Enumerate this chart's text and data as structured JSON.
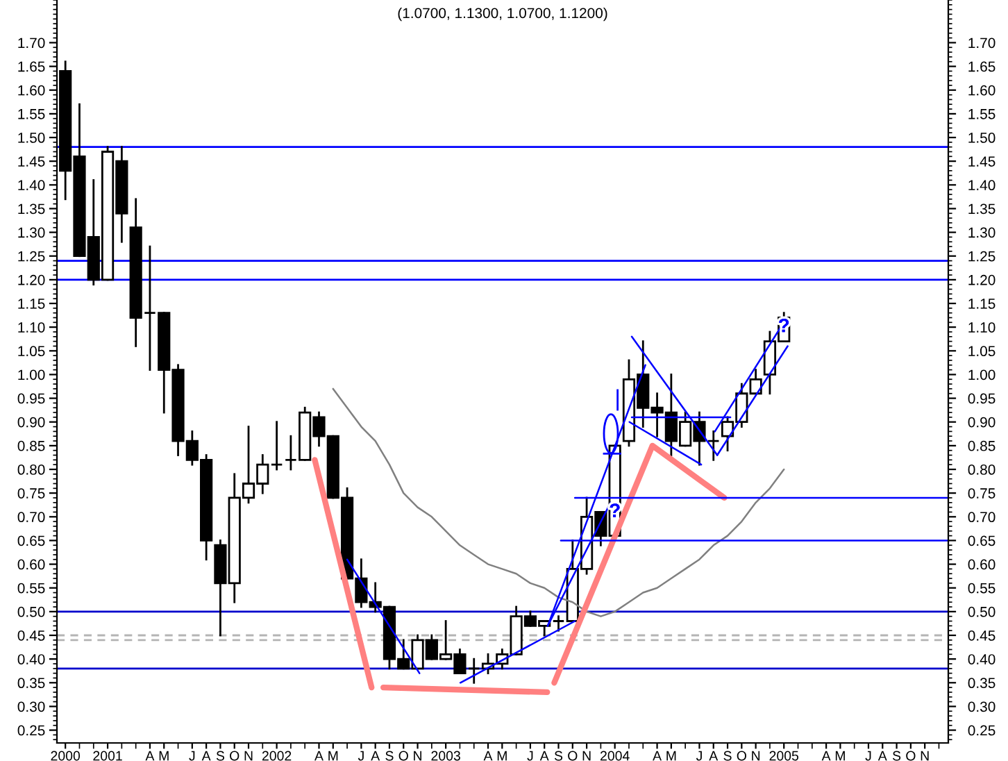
{
  "chart_data": {
    "type": "candlestick",
    "title": "(1.0700, 1.1300, 1.0700, 1.1200)",
    "x": [
      "2000-10",
      "2000-11",
      "2000-12",
      "2001-01",
      "2001-02",
      "2001-03",
      "2001-04",
      "2001-05",
      "2001-06",
      "2001-07",
      "2001-08",
      "2001-09",
      "2001-10",
      "2001-11",
      "2001-12",
      "2002-01",
      "2002-02",
      "2002-03",
      "2002-04",
      "2002-05",
      "2002-06",
      "2002-07",
      "2002-08",
      "2002-09",
      "2002-10",
      "2002-11",
      "2002-12",
      "2003-01",
      "2003-02",
      "2003-03",
      "2003-04",
      "2003-05",
      "2003-06",
      "2003-07",
      "2003-08",
      "2003-09",
      "2003-10",
      "2003-11",
      "2003-12",
      "2004-01",
      "2004-02",
      "2004-03",
      "2004-04",
      "2004-05",
      "2004-06",
      "2004-07",
      "2004-08",
      "2004-09",
      "2004-10",
      "2004-11",
      "2004-12",
      "2005-01"
    ],
    "ohlc": [
      [
        1.64,
        1.66,
        1.37,
        1.43
      ],
      [
        1.46,
        1.57,
        1.25,
        1.25
      ],
      [
        1.29,
        1.41,
        1.19,
        1.2
      ],
      [
        1.2,
        1.48,
        1.2,
        1.47
      ],
      [
        1.45,
        1.48,
        1.28,
        1.34
      ],
      [
        1.31,
        1.37,
        1.06,
        1.12
      ],
      [
        1.13,
        1.27,
        1.01,
        1.13
      ],
      [
        1.13,
        1.13,
        0.92,
        1.01
      ],
      [
        1.01,
        1.02,
        0.83,
        0.86
      ],
      [
        0.86,
        0.88,
        0.81,
        0.82
      ],
      [
        0.82,
        0.83,
        0.61,
        0.65
      ],
      [
        0.64,
        0.65,
        0.45,
        0.56
      ],
      [
        0.56,
        0.79,
        0.52,
        0.74
      ],
      [
        0.74,
        0.89,
        0.73,
        0.77
      ],
      [
        0.77,
        0.83,
        0.75,
        0.81
      ],
      [
        0.81,
        0.9,
        0.8,
        0.81
      ],
      [
        0.82,
        0.87,
        0.8,
        0.82
      ],
      [
        0.82,
        0.93,
        0.82,
        0.92
      ],
      [
        0.91,
        0.92,
        0.85,
        0.87
      ],
      [
        0.87,
        0.87,
        0.74,
        0.74
      ],
      [
        0.74,
        0.76,
        0.57,
        0.57
      ],
      [
        0.57,
        0.61,
        0.51,
        0.52
      ],
      [
        0.52,
        0.56,
        0.5,
        0.51
      ],
      [
        0.51,
        0.51,
        0.38,
        0.4
      ],
      [
        0.4,
        0.44,
        0.38,
        0.38
      ],
      [
        0.38,
        0.45,
        0.38,
        0.44
      ],
      [
        0.44,
        0.45,
        0.4,
        0.4
      ],
      [
        0.4,
        0.48,
        0.4,
        0.41
      ],
      [
        0.41,
        0.42,
        0.37,
        0.37
      ],
      [
        0.38,
        0.4,
        0.35,
        0.38
      ],
      [
        0.38,
        0.41,
        0.37,
        0.39
      ],
      [
        0.39,
        0.42,
        0.38,
        0.41
      ],
      [
        0.41,
        0.51,
        0.41,
        0.49
      ],
      [
        0.49,
        0.5,
        0.47,
        0.47
      ],
      [
        0.47,
        0.48,
        0.45,
        0.48
      ],
      [
        0.48,
        0.49,
        0.46,
        0.48
      ],
      [
        0.48,
        0.65,
        0.48,
        0.59
      ],
      [
        0.59,
        0.74,
        0.58,
        0.7
      ],
      [
        0.71,
        0.71,
        0.64,
        0.66
      ],
      [
        0.66,
        0.85,
        0.66,
        0.85
      ],
      [
        0.86,
        1.03,
        0.85,
        0.99
      ],
      [
        1.0,
        1.07,
        0.89,
        0.93
      ],
      [
        0.93,
        0.96,
        0.87,
        0.92
      ],
      [
        0.92,
        1.0,
        0.83,
        0.86
      ],
      [
        0.85,
        0.92,
        0.85,
        0.9
      ],
      [
        0.9,
        0.92,
        0.81,
        0.86
      ],
      [
        0.86,
        0.88,
        0.82,
        0.86
      ],
      [
        0.87,
        0.91,
        0.84,
        0.9
      ],
      [
        0.9,
        0.98,
        0.89,
        0.96
      ],
      [
        0.96,
        1.01,
        0.96,
        0.99
      ],
      [
        1.0,
        1.09,
        0.96,
        1.07
      ],
      [
        1.07,
        1.13,
        1.07,
        1.12
      ]
    ],
    "series": [
      {
        "type": "line",
        "color": "#808080",
        "x": [
          "2002-05",
          "2002-06",
          "2002-07",
          "2002-08",
          "2002-09",
          "2002-10",
          "2002-11",
          "2002-12",
          "2003-01",
          "2003-02",
          "2003-03",
          "2003-04",
          "2003-05",
          "2003-06",
          "2003-07",
          "2003-08",
          "2003-09",
          "2003-10",
          "2003-11",
          "2003-12",
          "2004-01",
          "2004-02",
          "2004-03",
          "2004-04",
          "2004-05",
          "2004-06",
          "2004-07",
          "2004-08",
          "2004-09",
          "2004-10",
          "2004-11",
          "2004-12",
          "2005-01"
        ],
        "values": [
          0.97,
          0.93,
          0.89,
          0.86,
          0.81,
          0.75,
          0.72,
          0.7,
          0.67,
          0.64,
          0.62,
          0.6,
          0.59,
          0.58,
          0.56,
          0.55,
          0.53,
          0.52,
          0.5,
          0.49,
          0.5,
          0.52,
          0.54,
          0.55,
          0.57,
          0.59,
          0.61,
          0.64,
          0.66,
          0.69,
          0.73,
          0.76,
          0.8
        ]
      },
      {
        "type": "line",
        "color": "#ff8080",
        "x": [
          "2002-03-22",
          "2002-07-23"
        ],
        "values": [
          0.82,
          0.34
        ]
      },
      {
        "type": "line",
        "color": "#ff8080",
        "x": [
          "2002-08-18",
          "2003-08-07"
        ],
        "values": [
          0.34,
          0.33
        ]
      },
      {
        "type": "line",
        "color": "#ff8080",
        "x": [
          "2003-08-22",
          "2004-03-21",
          "2004-08-24"
        ],
        "values": [
          0.35,
          0.85,
          0.74
        ]
      },
      {
        "type": "line",
        "color": "#0000ff",
        "x": [
          "2002-06-01",
          "2002-11-05"
        ],
        "values": [
          0.61,
          0.37
        ]
      },
      {
        "type": "line",
        "color": "#0000ff",
        "x": [
          "2003-02-02",
          "2003-10-06"
        ],
        "values": [
          0.35,
          0.48
        ]
      },
      {
        "type": "line",
        "color": "#0000ff",
        "x": [
          "2003-08-08",
          "2003-12-22"
        ],
        "values": [
          0.47,
          0.73
        ]
      },
      {
        "type": "line",
        "color": "#0000ff",
        "x": [
          "2003-08-08",
          "2004-03-06"
        ],
        "values": [
          0.47,
          1.02
        ]
      },
      {
        "type": "line",
        "color": "#0000ff",
        "x": [
          "2004-02-07",
          "2004-08-09"
        ],
        "values": [
          1.08,
          0.83
        ]
      },
      {
        "type": "line",
        "color": "#0000ff",
        "x": [
          "2004-02-02",
          "2004-07-05"
        ],
        "values": [
          0.9,
          0.81
        ]
      },
      {
        "type": "line",
        "color": "#0000ff",
        "x": [
          "2004-08-09",
          "2005-01-09"
        ],
        "values": [
          0.83,
          1.06
        ]
      },
      {
        "type": "line",
        "color": "#0000ff",
        "x": [
          "2004-08-04",
          "2005-01-07"
        ],
        "values": [
          0.88,
          1.12
        ]
      },
      {
        "type": "line",
        "color": "#0000ff",
        "x": [
          "2004-02-07",
          "2004-09-07"
        ],
        "values": [
          0.91,
          0.91
        ]
      },
      {
        "type": "line",
        "color": "#0000ff",
        "x": [
          "2003-10-06",
          "2005-12-21"
        ],
        "values": [
          0.74,
          0.74
        ]
      },
      {
        "type": "line",
        "color": "#0000ff",
        "x": [
          "2003-09-06",
          "2005-12-21"
        ],
        "values": [
          0.65,
          0.65
        ]
      }
    ],
    "ref_lines": [
      {
        "axis": "y",
        "value": 1.48,
        "color": "#0000ff"
      },
      {
        "axis": "y",
        "value": 1.24,
        "color": "#0000ff"
      },
      {
        "axis": "y",
        "value": 1.2,
        "color": "#0000ff"
      },
      {
        "axis": "y",
        "value": 0.5,
        "color": "#0000cc"
      },
      {
        "axis": "y",
        "value": 0.38,
        "color": "#0000cc"
      },
      {
        "axis": "y",
        "value": 0.45,
        "color": "#b4b4b4",
        "line_style": "dashed"
      },
      {
        "axis": "y",
        "value": 0.44,
        "color": "#b4b4b4",
        "line_style": "dashed"
      }
    ],
    "annotations": [
      {
        "text": "?",
        "x": "2004-01",
        "y": 0.71
      },
      {
        "text": "?",
        "x": "2005-01",
        "y": 1.1
      }
    ],
    "xlim": [
      "2000-09-13",
      "2005-12-21"
    ],
    "xticks": [
      {
        "value": "2000-10",
        "label": "2000"
      },
      {
        "value": "2000-11",
        "label": null
      },
      {
        "value": "2000-12",
        "label": null
      },
      {
        "value": "2001-01",
        "label": "2001"
      },
      {
        "value": "2001-02",
        "label": null
      },
      {
        "value": "2001-03",
        "label": null
      },
      {
        "value": "2001-04",
        "label": "A"
      },
      {
        "value": "2001-05",
        "label": "M"
      },
      {
        "value": "2001-06",
        "label": null
      },
      {
        "value": "2001-07",
        "label": "J"
      },
      {
        "value": "2001-08",
        "label": "A"
      },
      {
        "value": "2001-09",
        "label": "S"
      },
      {
        "value": "2001-10",
        "label": "O"
      },
      {
        "value": "2001-11",
        "label": "N"
      },
      {
        "value": "2001-12",
        "label": null
      },
      {
        "value": "2002-01",
        "label": "2002"
      },
      {
        "value": "2002-02",
        "label": null
      },
      {
        "value": "2002-03",
        "label": null
      },
      {
        "value": "2002-04",
        "label": "A"
      },
      {
        "value": "2002-05",
        "label": "M"
      },
      {
        "value": "2002-06",
        "label": null
      },
      {
        "value": "2002-07",
        "label": "J"
      },
      {
        "value": "2002-08",
        "label": "A"
      },
      {
        "value": "2002-09",
        "label": "S"
      },
      {
        "value": "2002-10",
        "label": "O"
      },
      {
        "value": "2002-11",
        "label": "N"
      },
      {
        "value": "2002-12",
        "label": null
      },
      {
        "value": "2003-01",
        "label": "2003"
      },
      {
        "value": "2003-02",
        "label": null
      },
      {
        "value": "2003-03",
        "label": null
      },
      {
        "value": "2003-04",
        "label": "A"
      },
      {
        "value": "2003-05",
        "label": "M"
      },
      {
        "value": "2003-06",
        "label": null
      },
      {
        "value": "2003-07",
        "label": "J"
      },
      {
        "value": "2003-08",
        "label": "A"
      },
      {
        "value": "2003-09",
        "label": "S"
      },
      {
        "value": "2003-10",
        "label": "O"
      },
      {
        "value": "2003-11",
        "label": "N"
      },
      {
        "value": "2003-12",
        "label": null
      },
      {
        "value": "2004-01",
        "label": "2004"
      },
      {
        "value": "2004-02",
        "label": null
      },
      {
        "value": "2004-03",
        "label": null
      },
      {
        "value": "2004-04",
        "label": "A"
      },
      {
        "value": "2004-05",
        "label": "M"
      },
      {
        "value": "2004-06",
        "label": null
      },
      {
        "value": "2004-07",
        "label": "J"
      },
      {
        "value": "2004-08",
        "label": "A"
      },
      {
        "value": "2004-09",
        "label": "S"
      },
      {
        "value": "2004-10",
        "label": "O"
      },
      {
        "value": "2004-11",
        "label": "N"
      },
      {
        "value": "2004-12",
        "label": null
      },
      {
        "value": "2005-01",
        "label": "2005"
      },
      {
        "value": "2005-02",
        "label": null
      },
      {
        "value": "2005-03",
        "label": null
      },
      {
        "value": "2005-04",
        "label": "A"
      },
      {
        "value": "2005-05",
        "label": "M"
      },
      {
        "value": "2005-06",
        "label": null
      },
      {
        "value": "2005-07",
        "label": "J"
      },
      {
        "value": "2005-08",
        "label": "A"
      },
      {
        "value": "2005-09",
        "label": "S"
      },
      {
        "value": "2005-10",
        "label": "O"
      },
      {
        "value": "2005-11",
        "label": "N"
      },
      {
        "value": "2005-12",
        "label": null
      }
    ],
    "ylim": [
      0.223,
      1.79
    ],
    "yticks": [
      {
        "value": 0.23,
        "label": null
      },
      {
        "value": 0.24,
        "label": null
      },
      {
        "value": 0.25,
        "label": "0.25"
      },
      {
        "value": 0.26,
        "label": null
      },
      {
        "value": 0.27,
        "label": null
      },
      {
        "value": 0.28,
        "label": null
      },
      {
        "value": 0.29,
        "label": null
      },
      {
        "value": 0.3,
        "label": "0.30"
      },
      {
        "value": 0.31,
        "label": null
      },
      {
        "value": 0.32,
        "label": null
      },
      {
        "value": 0.33,
        "label": null
      },
      {
        "value": 0.34,
        "label": null
      },
      {
        "value": 0.35,
        "label": "0.35"
      },
      {
        "value": 0.36,
        "label": null
      },
      {
        "value": 0.37,
        "label": null
      },
      {
        "value": 0.38,
        "label": null
      },
      {
        "value": 0.39,
        "label": null
      },
      {
        "value": 0.4,
        "label": "0.40"
      },
      {
        "value": 0.41,
        "label": null
      },
      {
        "value": 0.42,
        "label": null
      },
      {
        "value": 0.43,
        "label": null
      },
      {
        "value": 0.44,
        "label": null
      },
      {
        "value": 0.45,
        "label": "0.45"
      },
      {
        "value": 0.46,
        "label": null
      },
      {
        "value": 0.47,
        "label": null
      },
      {
        "value": 0.48,
        "label": null
      },
      {
        "value": 0.49,
        "label": null
      },
      {
        "value": 0.5,
        "label": "0.50"
      },
      {
        "value": 0.51,
        "label": null
      },
      {
        "value": 0.52,
        "label": null
      },
      {
        "value": 0.53,
        "label": null
      },
      {
        "value": 0.54,
        "label": null
      },
      {
        "value": 0.55,
        "label": "0.55"
      },
      {
        "value": 0.56,
        "label": null
      },
      {
        "value": 0.57,
        "label": null
      },
      {
        "value": 0.58,
        "label": null
      },
      {
        "value": 0.59,
        "label": null
      },
      {
        "value": 0.6,
        "label": "0.60"
      },
      {
        "value": 0.61,
        "label": null
      },
      {
        "value": 0.62,
        "label": null
      },
      {
        "value": 0.63,
        "label": null
      },
      {
        "value": 0.64,
        "label": null
      },
      {
        "value": 0.65,
        "label": "0.65"
      },
      {
        "value": 0.66,
        "label": null
      },
      {
        "value": 0.67,
        "label": null
      },
      {
        "value": 0.68,
        "label": null
      },
      {
        "value": 0.69,
        "label": null
      },
      {
        "value": 0.7,
        "label": "0.70"
      },
      {
        "value": 0.71,
        "label": null
      },
      {
        "value": 0.72,
        "label": null
      },
      {
        "value": 0.73,
        "label": null
      },
      {
        "value": 0.74,
        "label": null
      },
      {
        "value": 0.75,
        "label": "0.75"
      },
      {
        "value": 0.76,
        "label": null
      },
      {
        "value": 0.77,
        "label": null
      },
      {
        "value": 0.78,
        "label": null
      },
      {
        "value": 0.79,
        "label": null
      },
      {
        "value": 0.8,
        "label": "0.80"
      },
      {
        "value": 0.81,
        "label": null
      },
      {
        "value": 0.82,
        "label": null
      },
      {
        "value": 0.83,
        "label": null
      },
      {
        "value": 0.84,
        "label": null
      },
      {
        "value": 0.85,
        "label": "0.85"
      },
      {
        "value": 0.86,
        "label": null
      },
      {
        "value": 0.87,
        "label": null
      },
      {
        "value": 0.88,
        "label": null
      },
      {
        "value": 0.89,
        "label": null
      },
      {
        "value": 0.9,
        "label": "0.90"
      },
      {
        "value": 0.91,
        "label": null
      },
      {
        "value": 0.92,
        "label": null
      },
      {
        "value": 0.93,
        "label": null
      },
      {
        "value": 0.94,
        "label": null
      },
      {
        "value": 0.95,
        "label": "0.95"
      },
      {
        "value": 0.96,
        "label": null
      },
      {
        "value": 0.97,
        "label": null
      },
      {
        "value": 0.98,
        "label": null
      },
      {
        "value": 0.99,
        "label": null
      },
      {
        "value": 1.0,
        "label": "1.00"
      },
      {
        "value": 1.01,
        "label": null
      },
      {
        "value": 1.02,
        "label": null
      },
      {
        "value": 1.03,
        "label": null
      },
      {
        "value": 1.04,
        "label": null
      },
      {
        "value": 1.05,
        "label": "1.05"
      },
      {
        "value": 1.06,
        "label": null
      },
      {
        "value": 1.07,
        "label": null
      },
      {
        "value": 1.08,
        "label": null
      },
      {
        "value": 1.09,
        "label": null
      },
      {
        "value": 1.1,
        "label": "1.10"
      },
      {
        "value": 1.11,
        "label": null
      },
      {
        "value": 1.12,
        "label": null
      },
      {
        "value": 1.13,
        "label": null
      },
      {
        "value": 1.14,
        "label": null
      },
      {
        "value": 1.15,
        "label": "1.15"
      },
      {
        "value": 1.16,
        "label": null
      },
      {
        "value": 1.17,
        "label": null
      },
      {
        "value": 1.18,
        "label": null
      },
      {
        "value": 1.19,
        "label": null
      },
      {
        "value": 1.2,
        "label": "1.20"
      },
      {
        "value": 1.21,
        "label": null
      },
      {
        "value": 1.22,
        "label": null
      },
      {
        "value": 1.23,
        "label": null
      },
      {
        "value": 1.24,
        "label": null
      },
      {
        "value": 1.25,
        "label": "1.25"
      },
      {
        "value": 1.26,
        "label": null
      },
      {
        "value": 1.27,
        "label": null
      },
      {
        "value": 1.28,
        "label": null
      },
      {
        "value": 1.29,
        "label": null
      },
      {
        "value": 1.3,
        "label": "1.30"
      },
      {
        "value": 1.31,
        "label": null
      },
      {
        "value": 1.32,
        "label": null
      },
      {
        "value": 1.33,
        "label": null
      },
      {
        "value": 1.34,
        "label": null
      },
      {
        "value": 1.35,
        "label": "1.35"
      },
      {
        "value": 1.36,
        "label": null
      },
      {
        "value": 1.37,
        "label": null
      },
      {
        "value": 1.38,
        "label": null
      },
      {
        "value": 1.39,
        "label": null
      },
      {
        "value": 1.4,
        "label": "1.40"
      },
      {
        "value": 1.41,
        "label": null
      },
      {
        "value": 1.42,
        "label": null
      },
      {
        "value": 1.43,
        "label": null
      },
      {
        "value": 1.44,
        "label": null
      },
      {
        "value": 1.45,
        "label": "1.45"
      },
      {
        "value": 1.46,
        "label": null
      },
      {
        "value": 1.47,
        "label": null
      },
      {
        "value": 1.48,
        "label": null
      },
      {
        "value": 1.49,
        "label": null
      },
      {
        "value": 1.5,
        "label": "1.50"
      },
      {
        "value": 1.51,
        "label": null
      },
      {
        "value": 1.52,
        "label": null
      },
      {
        "value": 1.53,
        "label": null
      },
      {
        "value": 1.54,
        "label": null
      },
      {
        "value": 1.55,
        "label": "1.55"
      },
      {
        "value": 1.56,
        "label": null
      },
      {
        "value": 1.57,
        "label": null
      },
      {
        "value": 1.58,
        "label": null
      },
      {
        "value": 1.59,
        "label": null
      },
      {
        "value": 1.6,
        "label": "1.60"
      },
      {
        "value": 1.61,
        "label": null
      },
      {
        "value": 1.62,
        "label": null
      },
      {
        "value": 1.63,
        "label": null
      },
      {
        "value": 1.64,
        "label": null
      },
      {
        "value": 1.65,
        "label": "1.65"
      },
      {
        "value": 1.66,
        "label": null
      },
      {
        "value": 1.67,
        "label": null
      },
      {
        "value": 1.68,
        "label": null
      },
      {
        "value": 1.69,
        "label": null
      },
      {
        "value": 1.7,
        "label": "1.70"
      },
      {
        "value": 1.71,
        "label": null
      },
      {
        "value": 1.72,
        "label": null
      },
      {
        "value": 1.73,
        "label": null
      },
      {
        "value": 1.74,
        "label": null
      },
      {
        "value": 1.75,
        "label": null
      },
      {
        "value": 1.76,
        "label": null
      },
      {
        "value": 1.77,
        "label": null
      },
      {
        "value": 1.78,
        "label": null
      },
      {
        "value": 1.79,
        "label": null
      }
    ],
    "y2lim": [
      0.223,
      1.79
    ],
    "y2ticks": [
      {
        "value": 0.23,
        "label": null
      },
      {
        "value": 0.24,
        "label": null
      },
      {
        "value": 0.25,
        "label": "0.25"
      },
      {
        "value": 0.26,
        "label": null
      },
      {
        "value": 0.27,
        "label": null
      },
      {
        "value": 0.28,
        "label": null
      },
      {
        "value": 0.29,
        "label": null
      },
      {
        "value": 0.3,
        "label": "0.30"
      },
      {
        "value": 0.31,
        "label": null
      },
      {
        "value": 0.32,
        "label": null
      },
      {
        "value": 0.33,
        "label": null
      },
      {
        "value": 0.34,
        "label": null
      },
      {
        "value": 0.35,
        "label": "0.35"
      },
      {
        "value": 0.36,
        "label": null
      },
      {
        "value": 0.37,
        "label": null
      },
      {
        "value": 0.38,
        "label": null
      },
      {
        "value": 0.39,
        "label": null
      },
      {
        "value": 0.4,
        "label": "0.40"
      },
      {
        "value": 0.41,
        "label": null
      },
      {
        "value": 0.42,
        "label": null
      },
      {
        "value": 0.43,
        "label": null
      },
      {
        "value": 0.44,
        "label": null
      },
      {
        "value": 0.45,
        "label": "0.45"
      },
      {
        "value": 0.46,
        "label": null
      },
      {
        "value": 0.47,
        "label": null
      },
      {
        "value": 0.48,
        "label": null
      },
      {
        "value": 0.49,
        "label": null
      },
      {
        "value": 0.5,
        "label": "0.50"
      },
      {
        "value": 0.51,
        "label": null
      },
      {
        "value": 0.52,
        "label": null
      },
      {
        "value": 0.53,
        "label": null
      },
      {
        "value": 0.54,
        "label": null
      },
      {
        "value": 0.55,
        "label": "0.55"
      },
      {
        "value": 0.56,
        "label": null
      },
      {
        "value": 0.57,
        "label": null
      },
      {
        "value": 0.58,
        "label": null
      },
      {
        "value": 0.59,
        "label": null
      },
      {
        "value": 0.6,
        "label": "0.60"
      },
      {
        "value": 0.61,
        "label": null
      },
      {
        "value": 0.62,
        "label": null
      },
      {
        "value": 0.63,
        "label": null
      },
      {
        "value": 0.64,
        "label": null
      },
      {
        "value": 0.65,
        "label": "0.65"
      },
      {
        "value": 0.66,
        "label": null
      },
      {
        "value": 0.67,
        "label": null
      },
      {
        "value": 0.68,
        "label": null
      },
      {
        "value": 0.69,
        "label": null
      },
      {
        "value": 0.7,
        "label": "0.70"
      },
      {
        "value": 0.71,
        "label": null
      },
      {
        "value": 0.72,
        "label": null
      },
      {
        "value": 0.73,
        "label": null
      },
      {
        "value": 0.74,
        "label": null
      },
      {
        "value": 0.75,
        "label": "0.75"
      },
      {
        "value": 0.76,
        "label": null
      },
      {
        "value": 0.77,
        "label": null
      },
      {
        "value": 0.78,
        "label": null
      },
      {
        "value": 0.79,
        "label": null
      },
      {
        "value": 0.8,
        "label": "0.80"
      },
      {
        "value": 0.81,
        "label": null
      },
      {
        "value": 0.82,
        "label": null
      },
      {
        "value": 0.83,
        "label": null
      },
      {
        "value": 0.84,
        "label": null
      },
      {
        "value": 0.85,
        "label": "0.85"
      },
      {
        "value": 0.86,
        "label": null
      },
      {
        "value": 0.87,
        "label": null
      },
      {
        "value": 0.88,
        "label": null
      },
      {
        "value": 0.89,
        "label": null
      },
      {
        "value": 0.9,
        "label": "0.90"
      },
      {
        "value": 0.91,
        "label": null
      },
      {
        "value": 0.92,
        "label": null
      },
      {
        "value": 0.93,
        "label": null
      },
      {
        "value": 0.94,
        "label": null
      },
      {
        "value": 0.95,
        "label": "0.95"
      },
      {
        "value": 0.96,
        "label": null
      },
      {
        "value": 0.97,
        "label": null
      },
      {
        "value": 0.98,
        "label": null
      },
      {
        "value": 0.99,
        "label": null
      },
      {
        "value": 1.0,
        "label": "1.00"
      },
      {
        "value": 1.01,
        "label": null
      },
      {
        "value": 1.02,
        "label": null
      },
      {
        "value": 1.03,
        "label": null
      },
      {
        "value": 1.04,
        "label": null
      },
      {
        "value": 1.05,
        "label": "1.05"
      },
      {
        "value": 1.06,
        "label": null
      },
      {
        "value": 1.07,
        "label": null
      },
      {
        "value": 1.08,
        "label": null
      },
      {
        "value": 1.09,
        "label": null
      },
      {
        "value": 1.1,
        "label": "1.10"
      },
      {
        "value": 1.11,
        "label": null
      },
      {
        "value": 1.12,
        "label": null
      },
      {
        "value": 1.13,
        "label": null
      },
      {
        "value": 1.14,
        "label": null
      },
      {
        "value": 1.15,
        "label": "1.15"
      },
      {
        "value": 1.16,
        "label": null
      },
      {
        "value": 1.17,
        "label": null
      },
      {
        "value": 1.18,
        "label": null
      },
      {
        "value": 1.19,
        "label": null
      },
      {
        "value": 1.2,
        "label": "1.20"
      },
      {
        "value": 1.21,
        "label": null
      },
      {
        "value": 1.22,
        "label": null
      },
      {
        "value": 1.23,
        "label": null
      },
      {
        "value": 1.24,
        "label": null
      },
      {
        "value": 1.25,
        "label": "1.25"
      },
      {
        "value": 1.26,
        "label": null
      },
      {
        "value": 1.27,
        "label": null
      },
      {
        "value": 1.28,
        "label": null
      },
      {
        "value": 1.29,
        "label": null
      },
      {
        "value": 1.3,
        "label": "1.30"
      },
      {
        "value": 1.31,
        "label": null
      },
      {
        "value": 1.32,
        "label": null
      },
      {
        "value": 1.33,
        "label": null
      },
      {
        "value": 1.34,
        "label": null
      },
      {
        "value": 1.35,
        "label": "1.35"
      },
      {
        "value": 1.36,
        "label": null
      },
      {
        "value": 1.37,
        "label": null
      },
      {
        "value": 1.38,
        "label": null
      },
      {
        "value": 1.39,
        "label": null
      },
      {
        "value": 1.4,
        "label": "1.40"
      },
      {
        "value": 1.41,
        "label": null
      },
      {
        "value": 1.42,
        "label": null
      },
      {
        "value": 1.43,
        "label": null
      },
      {
        "value": 1.44,
        "label": null
      },
      {
        "value": 1.45,
        "label": "1.45"
      },
      {
        "value": 1.46,
        "label": null
      },
      {
        "value": 1.47,
        "label": null
      },
      {
        "value": 1.48,
        "label": null
      },
      {
        "value": 1.49,
        "label": null
      },
      {
        "value": 1.5,
        "label": "1.50"
      },
      {
        "value": 1.51,
        "label": null
      },
      {
        "value": 1.52,
        "label": null
      },
      {
        "value": 1.53,
        "label": null
      },
      {
        "value": 1.54,
        "label": null
      },
      {
        "value": 1.55,
        "label": "1.55"
      },
      {
        "value": 1.56,
        "label": null
      },
      {
        "value": 1.57,
        "label": null
      },
      {
        "value": 1.58,
        "label": null
      },
      {
        "value": 1.59,
        "label": null
      },
      {
        "value": 1.6,
        "label": "1.60"
      },
      {
        "value": 1.61,
        "label": null
      },
      {
        "value": 1.62,
        "label": null
      },
      {
        "value": 1.63,
        "label": null
      },
      {
        "value": 1.64,
        "label": null
      },
      {
        "value": 1.65,
        "label": "1.65"
      },
      {
        "value": 1.66,
        "label": null
      },
      {
        "value": 1.67,
        "label": null
      },
      {
        "value": 1.68,
        "label": null
      },
      {
        "value": 1.69,
        "label": null
      },
      {
        "value": 1.7,
        "label": "1.70"
      },
      {
        "value": 1.71,
        "label": null
      },
      {
        "value": 1.72,
        "label": null
      },
      {
        "value": 1.73,
        "label": null
      },
      {
        "value": 1.74,
        "label": null
      },
      {
        "value": 1.75,
        "label": null
      },
      {
        "value": 1.76,
        "label": null
      },
      {
        "value": 1.77,
        "label": null
      },
      {
        "value": 1.78,
        "label": null
      },
      {
        "value": 1.79,
        "label": null
      }
    ]
  }
}
